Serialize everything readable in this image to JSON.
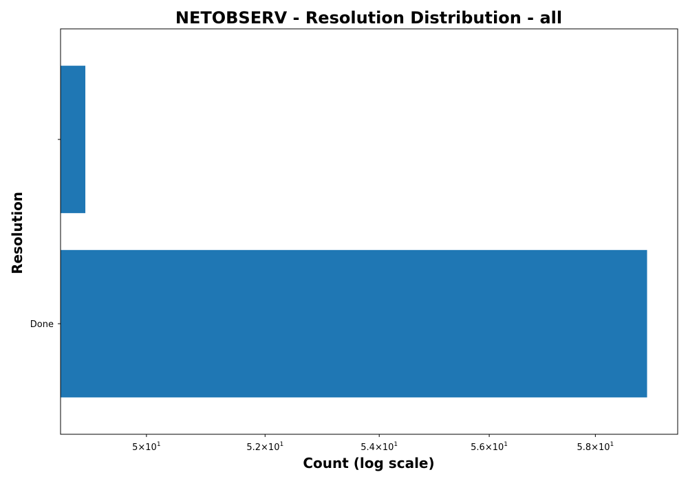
{
  "chart_data": {
    "type": "bar",
    "orientation": "horizontal",
    "title": "NETOBSERV - Resolution Distribution - all",
    "xlabel": "Count (log scale)",
    "ylabel": "Resolution",
    "xscale": "log",
    "xlim": [
      48.6,
      59.6
    ],
    "categories": [
      "Done",
      ""
    ],
    "values": [
      59,
      49
    ],
    "bar_color": "#1f77b4",
    "grid": false,
    "legend": "none",
    "xticks": [
      {
        "value": 50,
        "mantissa": "5",
        "base": "10",
        "exponent": "1"
      },
      {
        "value": 52,
        "mantissa": "5.2",
        "base": "10",
        "exponent": "1"
      },
      {
        "value": 54,
        "mantissa": "5.4",
        "base": "10",
        "exponent": "1"
      },
      {
        "value": 56,
        "mantissa": "5.6",
        "base": "10",
        "exponent": "1"
      },
      {
        "value": 58,
        "mantissa": "5.8",
        "base": "10",
        "exponent": "1"
      }
    ]
  }
}
